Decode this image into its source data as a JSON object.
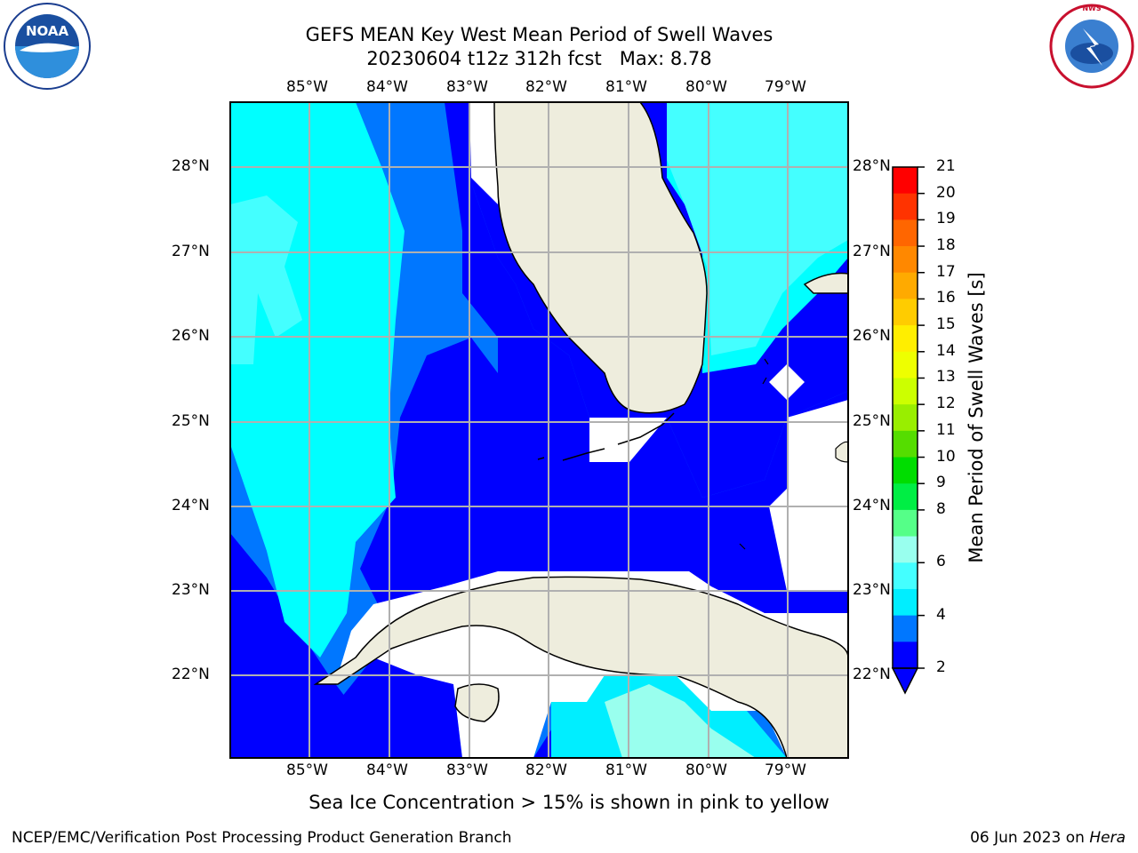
{
  "title": {
    "line1": "GEFS MEAN Key West Mean Period of Swell Waves",
    "line2": "20230604 t12z 312h fcst   Max: 8.78"
  },
  "logos": {
    "left": {
      "text": "NOAA",
      "icon": "noaa-logo-icon"
    },
    "right": {
      "text": "NATIONAL WEATHER SERVICE",
      "icon": "nws-logo-icon"
    }
  },
  "map": {
    "lon_labels": [
      "85°W",
      "84°W",
      "83°W",
      "82°W",
      "81°W",
      "80°W",
      "79°W"
    ],
    "lat_labels": [
      "28°N",
      "27°N",
      "26°N",
      "25°N",
      "24°N",
      "23°N",
      "22°N"
    ],
    "lon_range": [
      -86.0,
      -78.25
    ],
    "lat_range": [
      21.0,
      28.75
    ],
    "land_color": "#eeeddd",
    "grid_color": "#b0b0b0"
  },
  "colorbar": {
    "label": "Mean Period of Swell Waves [s]",
    "ticks": [
      "21",
      "20",
      "19",
      "18",
      "17",
      "16",
      "15",
      "14",
      "13",
      "12",
      "11",
      "10",
      "9",
      "8",
      "6",
      "4",
      "2"
    ],
    "colors": [
      "#ff0000",
      "#ff3300",
      "#ff6600",
      "#ff8800",
      "#ffaa00",
      "#ffcc00",
      "#ffee00",
      "#eeff00",
      "#ccff00",
      "#99ee00",
      "#55dd00",
      "#00dd00",
      "#00ee44",
      "#55ff88",
      "#99ffee",
      "#44ffff",
      "#00eeff",
      "#0077ff",
      "#0000ff"
    ],
    "extend_color": "#0000ff"
  },
  "footnote": "Sea Ice Concentration > 15% is shown in pink to yellow",
  "credit": {
    "left": "NCEP/EMC/Verification Post Processing Product Generation Branch",
    "date": "06 Jun 2023 on",
    "machine": "Hera"
  }
}
